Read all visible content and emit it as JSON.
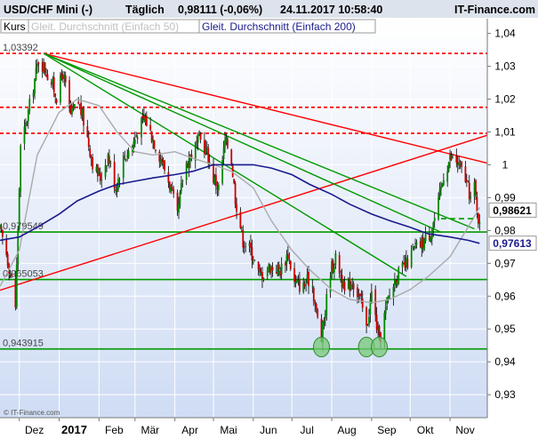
{
  "header": {
    "instrument": "USD/CHF Mini (-)",
    "interval": "Täglich",
    "quote": "0,98111 (-0,06%)",
    "datetime": "24.11.2017 10:58:40",
    "brand": "IT-Finance.com"
  },
  "legend": {
    "kurs": "Kurs",
    "sma50": "Gleit. Durchschnitt (Einfach 50)",
    "sma200": "Gleit. Durchschnitt (Einfach 200)"
  },
  "watermark": "© IT-Finance.com",
  "chart_data": {
    "type": "candlestick",
    "title": "USD/CHF Mini (-)",
    "ylim": [
      0.923,
      1.0445
    ],
    "y_ticks": [
      {
        "value": 1.04,
        "label": "1,04"
      },
      {
        "value": 1.03,
        "label": "1,03"
      },
      {
        "value": 1.02,
        "label": "1,02"
      },
      {
        "value": 1.01,
        "label": "1,01"
      },
      {
        "value": 1.0,
        "label": "1"
      },
      {
        "value": 0.99,
        "label": "0,99"
      },
      {
        "value": 0.98,
        "label": "0,98"
      },
      {
        "value": 0.97,
        "label": "0,97"
      },
      {
        "value": 0.96,
        "label": "0,96"
      },
      {
        "value": 0.95,
        "label": "0,95"
      },
      {
        "value": 0.94,
        "label": "0,94"
      },
      {
        "value": 0.93,
        "label": "0,93"
      }
    ],
    "x_ticks": [
      {
        "date": "2016-12-01",
        "label": "Dez",
        "bold": false
      },
      {
        "date": "2017-01-01",
        "label": "2017",
        "bold": true
      },
      {
        "date": "2017-02-01",
        "label": "Feb",
        "bold": false
      },
      {
        "date": "2017-03-01",
        "label": "Mär",
        "bold": false
      },
      {
        "date": "2017-04-01",
        "label": "Apr",
        "bold": false
      },
      {
        "date": "2017-05-01",
        "label": "Mai",
        "bold": false
      },
      {
        "date": "2017-06-01",
        "label": "Jun",
        "bold": false
      },
      {
        "date": "2017-07-01",
        "label": "Jul",
        "bold": false
      },
      {
        "date": "2017-08-01",
        "label": "Aug",
        "bold": false
      },
      {
        "date": "2017-09-01",
        "label": "Sep",
        "bold": false
      },
      {
        "date": "2017-10-01",
        "label": "Okt",
        "bold": false
      },
      {
        "date": "2017-11-01",
        "label": "Nov",
        "bold": false
      }
    ],
    "x_range": [
      "2016-11-16",
      "2017-11-30"
    ],
    "horizontal_levels": [
      {
        "value": 1.03392,
        "label": "1,03392",
        "color": "#ff0000",
        "style": "dotted"
      },
      {
        "value": 1.0175,
        "label": "",
        "color": "#ff0000",
        "style": "dotted"
      },
      {
        "value": 1.0096,
        "label": "",
        "color": "#ff0000",
        "style": "dotted"
      },
      {
        "value": 0.97954,
        "label": "0,979549",
        "color": "#009900",
        "style": "solid"
      },
      {
        "value": 0.96505,
        "label": "0,965053",
        "color": "#009900",
        "style": "solid"
      },
      {
        "value": 0.943915,
        "label": "0,943915",
        "color": "#009900",
        "style": "solid"
      }
    ],
    "trendlines": [
      {
        "from": [
          "2016-12-20",
          1.0339
        ],
        "to": [
          "2017-11-30",
          1.0005
        ],
        "color": "#ff0000"
      },
      {
        "from": [
          "2016-11-16",
          0.9618
        ],
        "to": [
          "2017-11-30",
          1.009
        ],
        "color": "#ff0000"
      },
      {
        "from": [
          "2016-12-20",
          1.0339
        ],
        "to": [
          "2017-10-25",
          0.9795
        ],
        "color": "#009900"
      },
      {
        "from": [
          "2016-12-20",
          1.0339
        ],
        "to": [
          "2017-09-28",
          0.966
        ],
        "color": "#009900"
      },
      {
        "from": [
          "2016-12-20",
          1.0339
        ],
        "to": [
          "2017-11-20",
          0.9805
        ],
        "color": "#009900"
      }
    ],
    "dashed_level": {
      "value": 0.9836,
      "from": "2017-10-25",
      "to": "2017-11-22",
      "color": "#009900"
    },
    "highlight_circles": [
      {
        "date": "2017-07-24",
        "value": 0.9445
      },
      {
        "date": "2017-08-28",
        "value": 0.9445
      },
      {
        "date": "2017-09-07",
        "value": 0.9445
      }
    ],
    "price_markers": [
      {
        "value": 0.98621,
        "label": "0,98621",
        "color": "#000000"
      },
      {
        "value": 0.97613,
        "label": "0,97613",
        "color": "#1a1a8c"
      }
    ],
    "series": [
      {
        "name": "Kurs",
        "type": "candlestick",
        "up_color": "#008800",
        "down_color": "#cc0000",
        "anchors": [
          [
            "2016-11-16",
            0.98
          ],
          [
            "2016-11-20",
            0.975
          ],
          [
            "2016-11-25",
            0.965
          ],
          [
            "2016-11-28",
            0.957
          ],
          [
            "2016-12-02",
            1.005
          ],
          [
            "2016-12-06",
            1.012
          ],
          [
            "2016-12-12",
            1.024
          ],
          [
            "2016-12-16",
            1.032
          ],
          [
            "2016-12-20",
            1.03
          ],
          [
            "2016-12-26",
            1.025
          ],
          [
            "2016-12-30",
            1.021
          ],
          [
            "2017-01-04",
            1.028
          ],
          [
            "2017-01-10",
            1.015
          ],
          [
            "2017-01-16",
            1.019
          ],
          [
            "2017-01-21",
            1.012
          ],
          [
            "2017-01-28",
            0.999
          ],
          [
            "2017-02-02",
            0.996
          ],
          [
            "2017-02-08",
            1.003
          ],
          [
            "2017-02-14",
            0.993
          ],
          [
            "2017-02-20",
            1.002
          ],
          [
            "2017-02-27",
            1.006
          ],
          [
            "2017-03-05",
            1.012
          ],
          [
            "2017-03-09",
            1.014
          ],
          [
            "2017-03-15",
            1.008
          ],
          [
            "2017-03-22",
            1.001
          ],
          [
            "2017-03-28",
            0.994
          ],
          [
            "2017-04-03",
            0.984
          ],
          [
            "2017-04-08",
            0.999
          ],
          [
            "2017-04-15",
            1.004
          ],
          [
            "2017-04-20",
            1.008
          ],
          [
            "2017-04-26",
            1.004
          ],
          [
            "2017-05-01",
            0.996
          ],
          [
            "2017-05-05",
            0.993
          ],
          [
            "2017-05-10",
            1.007
          ],
          [
            "2017-05-14",
            1.005
          ],
          [
            "2017-05-18",
            0.99
          ],
          [
            "2017-05-24",
            0.977
          ],
          [
            "2017-05-30",
            0.974
          ],
          [
            "2017-06-06",
            0.966
          ],
          [
            "2017-06-14",
            0.969
          ],
          [
            "2017-06-22",
            0.968
          ],
          [
            "2017-06-28",
            0.973
          ],
          [
            "2017-07-03",
            0.964
          ],
          [
            "2017-07-10",
            0.963
          ],
          [
            "2017-07-16",
            0.966
          ],
          [
            "2017-07-20",
            0.955
          ],
          [
            "2017-07-24",
            0.947
          ],
          [
            "2017-07-31",
            0.968
          ],
          [
            "2017-08-05",
            0.972
          ],
          [
            "2017-08-11",
            0.961
          ],
          [
            "2017-08-17",
            0.965
          ],
          [
            "2017-08-24",
            0.958
          ],
          [
            "2017-08-28",
            0.95
          ],
          [
            "2017-09-01",
            0.961
          ],
          [
            "2017-09-07",
            0.946
          ],
          [
            "2017-09-13",
            0.958
          ],
          [
            "2017-09-20",
            0.966
          ],
          [
            "2017-09-27",
            0.969
          ],
          [
            "2017-10-04",
            0.974
          ],
          [
            "2017-10-10",
            0.976
          ],
          [
            "2017-10-16",
            0.979
          ],
          [
            "2017-10-22",
            0.986
          ],
          [
            "2017-10-27",
            0.997
          ],
          [
            "2017-11-01",
            1.002
          ],
          [
            "2017-11-06",
            1.001
          ],
          [
            "2017-11-12",
            0.997
          ],
          [
            "2017-11-17",
            0.99
          ],
          [
            "2017-11-20",
            0.993
          ],
          [
            "2017-11-24",
            0.9811
          ]
        ]
      },
      {
        "name": "Gleit. Durchschnitt (Einfach 50)",
        "type": "line",
        "color": "#aaaaaa",
        "points": [
          [
            "2016-11-16",
            0.963
          ],
          [
            "2016-12-01",
            0.974
          ],
          [
            "2016-12-15",
            1.003
          ],
          [
            "2017-01-01",
            1.016
          ],
          [
            "2017-01-15",
            1.02
          ],
          [
            "2017-02-01",
            1.018
          ],
          [
            "2017-02-15",
            1.01
          ],
          [
            "2017-03-01",
            1.004
          ],
          [
            "2017-03-15",
            1.003
          ],
          [
            "2017-04-01",
            1.004
          ],
          [
            "2017-04-15",
            1.002
          ],
          [
            "2017-05-01",
            1.0
          ],
          [
            "2017-05-15",
            0.998
          ],
          [
            "2017-06-01",
            0.993
          ],
          [
            "2017-06-15",
            0.983
          ],
          [
            "2017-07-01",
            0.974
          ],
          [
            "2017-07-15",
            0.968
          ],
          [
            "2017-08-01",
            0.962
          ],
          [
            "2017-08-15",
            0.959
          ],
          [
            "2017-09-01",
            0.958
          ],
          [
            "2017-09-15",
            0.959
          ],
          [
            "2017-10-01",
            0.962
          ],
          [
            "2017-10-15",
            0.966
          ],
          [
            "2017-11-01",
            0.972
          ],
          [
            "2017-11-15",
            0.981
          ],
          [
            "2017-11-24",
            0.987
          ]
        ]
      },
      {
        "name": "Gleit. Durchschnitt (Einfach 200)",
        "type": "line",
        "color": "#1a1a8c",
        "points": [
          [
            "2016-11-16",
            0.977
          ],
          [
            "2016-12-01",
            0.978
          ],
          [
            "2016-12-15",
            0.981
          ],
          [
            "2017-01-01",
            0.985
          ],
          [
            "2017-01-15",
            0.989
          ],
          [
            "2017-02-01",
            0.992
          ],
          [
            "2017-02-15",
            0.994
          ],
          [
            "2017-03-01",
            0.995
          ],
          [
            "2017-03-15",
            0.996
          ],
          [
            "2017-04-01",
            0.997
          ],
          [
            "2017-04-15",
            0.998
          ],
          [
            "2017-05-01",
            1.0
          ],
          [
            "2017-05-15",
            1.0
          ],
          [
            "2017-06-01",
            1.0
          ],
          [
            "2017-06-15",
            0.999
          ],
          [
            "2017-07-01",
            0.997
          ],
          [
            "2017-07-15",
            0.994
          ],
          [
            "2017-08-01",
            0.991
          ],
          [
            "2017-08-15",
            0.988
          ],
          [
            "2017-09-01",
            0.985
          ],
          [
            "2017-09-15",
            0.983
          ],
          [
            "2017-10-01",
            0.981
          ],
          [
            "2017-10-15",
            0.979
          ],
          [
            "2017-11-01",
            0.978
          ],
          [
            "2017-11-15",
            0.977
          ],
          [
            "2017-11-24",
            0.9761
          ]
        ]
      }
    ]
  }
}
